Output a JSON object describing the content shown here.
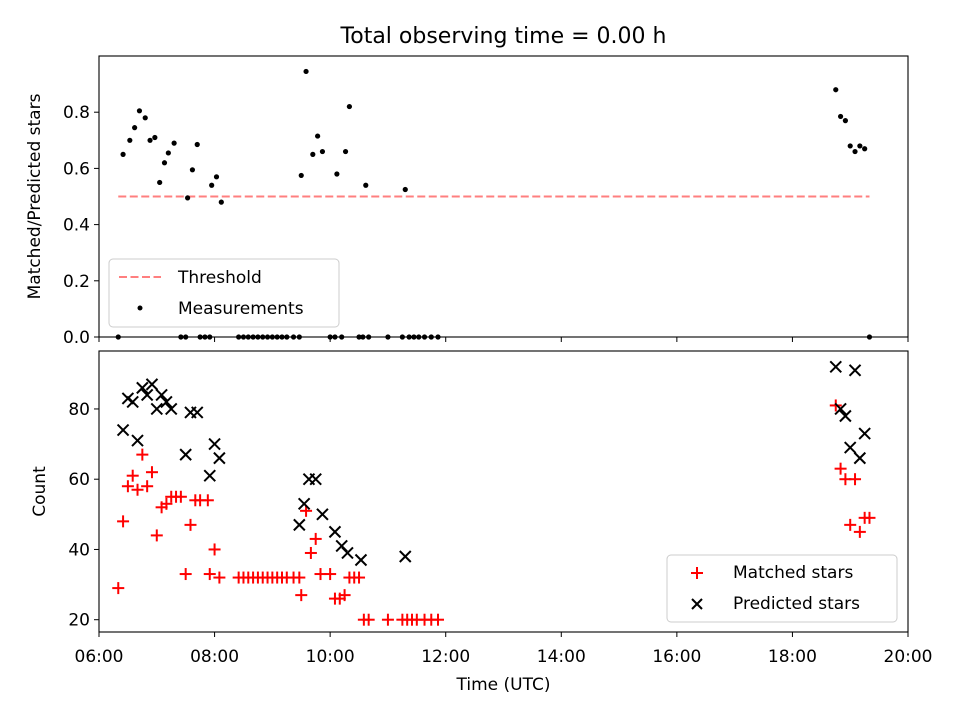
{
  "chart_data": [
    {
      "type": "scatter",
      "title": "Total observing time = 0.00 h",
      "ylabel": "Matched/Predicted stars",
      "xlim": [
        "06:00",
        "20:00"
      ],
      "ylim": [
        0,
        1.0
      ],
      "yticks": [
        0.0,
        0.2,
        0.4,
        0.6,
        0.8
      ],
      "ytick_labels": [
        "0.0",
        "0.2",
        "0.4",
        "0.6",
        "0.8"
      ],
      "xticks": [
        "06:00",
        "08:00",
        "10:00",
        "12:00",
        "14:00",
        "16:00",
        "18:00",
        "20:00"
      ],
      "legend": {
        "placement": "lower-left",
        "entries": [
          "Threshold",
          "Measurements"
        ]
      },
      "series": [
        {
          "name": "Threshold",
          "kind": "dashed-line",
          "color": "#ff7f7f",
          "points": [
            [
              "06:20",
              0.5
            ],
            [
              "19:20",
              0.5
            ]
          ]
        },
        {
          "name": "Measurements",
          "kind": "dot",
          "color": "#000000",
          "points": [
            [
              "06:20",
              0.0
            ],
            [
              "06:25",
              0.65
            ],
            [
              "06:32",
              0.7
            ],
            [
              "06:37",
              0.745
            ],
            [
              "06:42",
              0.805
            ],
            [
              "06:48",
              0.78
            ],
            [
              "06:53",
              0.7
            ],
            [
              "06:58",
              0.71
            ],
            [
              "07:03",
              0.55
            ],
            [
              "07:08",
              0.62
            ],
            [
              "07:12",
              0.655
            ],
            [
              "07:18",
              0.69
            ],
            [
              "07:25",
              0.0
            ],
            [
              "07:30",
              0.0
            ],
            [
              "07:32",
              0.495
            ],
            [
              "07:37",
              0.595
            ],
            [
              "07:42",
              0.685
            ],
            [
              "07:45",
              0.0
            ],
            [
              "07:50",
              0.0
            ],
            [
              "07:55",
              0.0
            ],
            [
              "07:57",
              0.54
            ],
            [
              "08:02",
              0.57
            ],
            [
              "08:07",
              0.48
            ],
            [
              "08:25",
              0.0
            ],
            [
              "08:30",
              0.0
            ],
            [
              "08:35",
              0.0
            ],
            [
              "08:40",
              0.0
            ],
            [
              "08:45",
              0.0
            ],
            [
              "08:50",
              0.0
            ],
            [
              "08:55",
              0.0
            ],
            [
              "09:00",
              0.0
            ],
            [
              "09:05",
              0.0
            ],
            [
              "09:10",
              0.0
            ],
            [
              "09:15",
              0.0
            ],
            [
              "09:22",
              0.0
            ],
            [
              "09:28",
              0.0
            ],
            [
              "09:30",
              0.575
            ],
            [
              "09:35",
              0.945
            ],
            [
              "09:42",
              0.65
            ],
            [
              "09:47",
              0.715
            ],
            [
              "09:52",
              0.66
            ],
            [
              "10:00",
              0.0
            ],
            [
              "10:05",
              0.0
            ],
            [
              "10:07",
              0.58
            ],
            [
              "10:12",
              0.0
            ],
            [
              "10:16",
              0.66
            ],
            [
              "10:20",
              0.82
            ],
            [
              "10:30",
              0.0
            ],
            [
              "10:34",
              0.0
            ],
            [
              "10:37",
              0.54
            ],
            [
              "10:40",
              0.0
            ],
            [
              "11:00",
              0.0
            ],
            [
              "11:15",
              0.0
            ],
            [
              "11:18",
              0.525
            ],
            [
              "11:22",
              0.0
            ],
            [
              "11:27",
              0.0
            ],
            [
              "11:32",
              0.0
            ],
            [
              "11:38",
              0.0
            ],
            [
              "11:45",
              0.0
            ],
            [
              "11:52",
              0.0
            ],
            [
              "18:45",
              0.88
            ],
            [
              "18:50",
              0.785
            ],
            [
              "18:55",
              0.77
            ],
            [
              "19:00",
              0.68
            ],
            [
              "19:05",
              0.66
            ],
            [
              "19:10",
              0.68
            ],
            [
              "19:15",
              0.67
            ],
            [
              "19:20",
              0.0
            ]
          ]
        }
      ]
    },
    {
      "type": "scatter",
      "xlabel": "Time (UTC)",
      "ylabel": "Count",
      "xlim": [
        "06:00",
        "20:00"
      ],
      "ylim": [
        16.5,
        96.5
      ],
      "yticks": [
        20,
        40,
        60,
        80
      ],
      "ytick_labels": [
        "20",
        "40",
        "60",
        "80"
      ],
      "xticks": [
        "06:00",
        "08:00",
        "10:00",
        "12:00",
        "14:00",
        "16:00",
        "18:00",
        "20:00"
      ],
      "xtick_labels": [
        "06:00",
        "08:00",
        "10:00",
        "12:00",
        "14:00",
        "16:00",
        "18:00",
        "20:00"
      ],
      "legend": {
        "placement": "lower-right",
        "entries": [
          "Matched stars",
          "Predicted stars"
        ]
      },
      "series": [
        {
          "name": "Matched stars",
          "marker": "+",
          "color": "#ff0000",
          "points": [
            [
              "06:20",
              29
            ],
            [
              "06:25",
              48
            ],
            [
              "06:30",
              58
            ],
            [
              "06:35",
              61
            ],
            [
              "06:40",
              57
            ],
            [
              "06:45",
              67
            ],
            [
              "06:50",
              58
            ],
            [
              "06:55",
              62
            ],
            [
              "07:00",
              44
            ],
            [
              "07:05",
              52
            ],
            [
              "07:10",
              53
            ],
            [
              "07:15",
              55
            ],
            [
              "07:20",
              55
            ],
            [
              "07:25",
              55
            ],
            [
              "07:30",
              33
            ],
            [
              "07:35",
              47
            ],
            [
              "07:40",
              54
            ],
            [
              "07:45",
              54
            ],
            [
              "07:53",
              54
            ],
            [
              "07:55",
              33
            ],
            [
              "08:00",
              40
            ],
            [
              "08:05",
              32
            ],
            [
              "08:25",
              32
            ],
            [
              "08:30",
              32
            ],
            [
              "08:35",
              32
            ],
            [
              "08:40",
              32
            ],
            [
              "08:45",
              32
            ],
            [
              "08:50",
              32
            ],
            [
              "08:55",
              32
            ],
            [
              "09:00",
              32
            ],
            [
              "09:05",
              32
            ],
            [
              "09:10",
              32
            ],
            [
              "09:15",
              32
            ],
            [
              "09:22",
              32
            ],
            [
              "09:28",
              32
            ],
            [
              "09:30",
              27
            ],
            [
              "09:35",
              51
            ],
            [
              "09:40",
              39
            ],
            [
              "09:45",
              43
            ],
            [
              "09:50",
              33
            ],
            [
              "10:00",
              33
            ],
            [
              "10:05",
              26
            ],
            [
              "10:10",
              26
            ],
            [
              "10:15",
              27
            ],
            [
              "10:20",
              32
            ],
            [
              "10:25",
              32
            ],
            [
              "10:30",
              32
            ],
            [
              "10:35",
              20
            ],
            [
              "10:40",
              20
            ],
            [
              "11:00",
              20
            ],
            [
              "11:15",
              20
            ],
            [
              "11:20",
              20
            ],
            [
              "11:25",
              20
            ],
            [
              "11:30",
              20
            ],
            [
              "11:38",
              20
            ],
            [
              "11:45",
              20
            ],
            [
              "11:52",
              20
            ],
            [
              "18:45",
              81
            ],
            [
              "18:50",
              63
            ],
            [
              "18:55",
              60
            ],
            [
              "19:00",
              47
            ],
            [
              "19:05",
              60
            ],
            [
              "19:10",
              45
            ],
            [
              "19:15",
              49
            ],
            [
              "19:20",
              49
            ]
          ]
        },
        {
          "name": "Predicted stars",
          "marker": "x",
          "color": "#000000",
          "points": [
            [
              "06:25",
              74
            ],
            [
              "06:30",
              83
            ],
            [
              "06:35",
              82
            ],
            [
              "06:40",
              71
            ],
            [
              "06:45",
              86
            ],
            [
              "06:50",
              84
            ],
            [
              "06:55",
              87
            ],
            [
              "07:00",
              80
            ],
            [
              "07:05",
              84
            ],
            [
              "07:10",
              82
            ],
            [
              "07:15",
              80
            ],
            [
              "07:30",
              67
            ],
            [
              "07:35",
              79
            ],
            [
              "07:42",
              79
            ],
            [
              "07:55",
              61
            ],
            [
              "08:00",
              70
            ],
            [
              "08:05",
              66
            ],
            [
              "09:28",
              47
            ],
            [
              "09:33",
              53
            ],
            [
              "09:38",
              60
            ],
            [
              "09:45",
              60
            ],
            [
              "09:52",
              50
            ],
            [
              "10:05",
              45
            ],
            [
              "10:12",
              41
            ],
            [
              "10:18",
              39
            ],
            [
              "10:32",
              37
            ],
            [
              "11:18",
              38
            ],
            [
              "18:45",
              92
            ],
            [
              "18:50",
              80
            ],
            [
              "18:55",
              78
            ],
            [
              "19:00",
              69
            ],
            [
              "19:05",
              91
            ],
            [
              "19:10",
              66
            ],
            [
              "19:15",
              73
            ]
          ]
        }
      ]
    }
  ]
}
